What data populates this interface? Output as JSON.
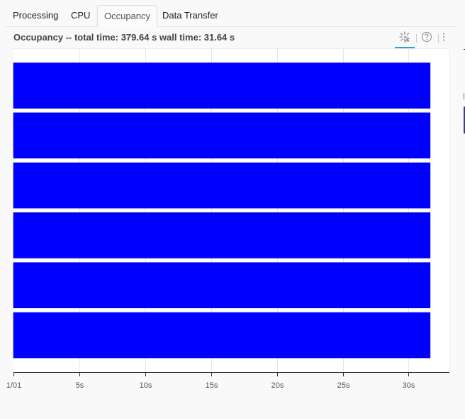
{
  "tabs": [
    {
      "label": "Processing",
      "active": false
    },
    {
      "label": "CPU",
      "active": false
    },
    {
      "label": "Occupancy",
      "active": true
    },
    {
      "label": "Data Transfer",
      "active": false
    }
  ],
  "panel": {
    "title": "Occupancy -- total time: 379.64 s wall time: 31.64 s"
  },
  "toolbar": {
    "icons": [
      "selection-icon",
      "help-icon",
      "more-options-icon"
    ]
  },
  "colors": {
    "bar": "#0000ff",
    "accent": "#2a9fd6"
  },
  "chart_data": {
    "type": "bar",
    "orientation": "horizontal",
    "title": "",
    "xlabel": "",
    "ylabel": "",
    "x_tick_labels": [
      "1/01",
      "5s",
      "10s",
      "15s",
      "20s",
      "25s",
      "30s"
    ],
    "x_ticks": [
      0,
      5,
      10,
      15,
      20,
      25,
      30
    ],
    "xlim": [
      0,
      33.1
    ],
    "grid": true,
    "legend": "none",
    "rows": [
      {
        "start": 0,
        "end": 31.64
      },
      {
        "start": 0,
        "end": 31.64
      },
      {
        "start": 0,
        "end": 31.64
      },
      {
        "start": 0,
        "end": 31.64
      },
      {
        "start": 0,
        "end": 31.64
      },
      {
        "start": 0,
        "end": 31.64
      }
    ]
  }
}
